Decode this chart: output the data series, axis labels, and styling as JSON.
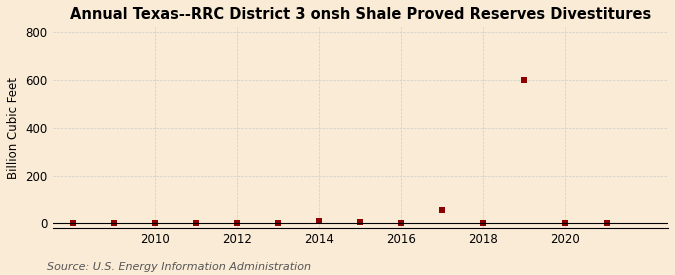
{
  "title": "Annual Texas--RRC District 3 onsh Shale Proved Reserves Divestitures",
  "ylabel": "Billion Cubic Feet",
  "source": "Source: U.S. Energy Information Administration",
  "background_color": "#faebd7",
  "years": [
    2008,
    2009,
    2010,
    2011,
    2012,
    2013,
    2014,
    2015,
    2016,
    2017,
    2018,
    2019,
    2020,
    2021
  ],
  "values": [
    0.5,
    0.5,
    0.5,
    0.5,
    0.5,
    2.0,
    8.0,
    5.0,
    1.0,
    55.0,
    1.0,
    598.0,
    1.0,
    1.0
  ],
  "marker_color": "#8b0000",
  "marker_size": 4,
  "xlim": [
    2007.5,
    2022.5
  ],
  "ylim": [
    -20,
    820
  ],
  "yticks": [
    0,
    200,
    400,
    600,
    800
  ],
  "xticks": [
    2010,
    2012,
    2014,
    2016,
    2018,
    2020
  ],
  "grid_color": "#cccccc",
  "title_fontsize": 10.5,
  "label_fontsize": 8.5,
  "tick_fontsize": 8.5,
  "source_fontsize": 8
}
